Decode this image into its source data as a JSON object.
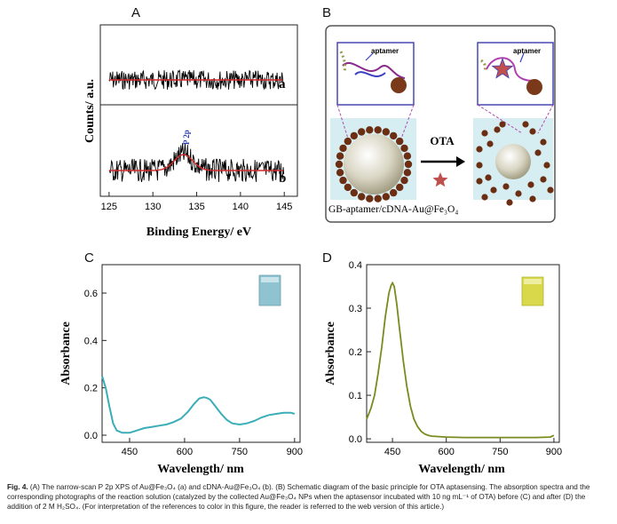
{
  "panels": {
    "A": {
      "letter": "A"
    },
    "B": {
      "letter": "B"
    },
    "C": {
      "letter": "C"
    },
    "D": {
      "letter": "D"
    }
  },
  "panelB": {
    "aptamer_label_left": "aptamer",
    "aptamer_label_right": "aptamer",
    "reagent_label": "OTA",
    "conjugate_label": "GB-aptamer/cDNA-Au@Fe₃O₄"
  },
  "chart_data": [
    {
      "panel": "A",
      "type": "line",
      "title": "",
      "xlabel": "Binding Energy/ eV",
      "ylabel": "Counts/ a.u.",
      "xlim": [
        124,
        146.5
      ],
      "xticks": [
        125,
        130,
        135,
        140,
        145
      ],
      "series": [
        {
          "name": "a",
          "description_label": "a",
          "x_range": [
            125,
            145
          ],
          "noise": "flat baseline with noise, red smoothed fit"
        },
        {
          "name": "b",
          "description_label": "b",
          "x_range": [
            125,
            145
          ],
          "peak_x": 133.5,
          "peak_label": "P 2p"
        }
      ],
      "grid": false
    },
    {
      "panel": "C",
      "type": "line",
      "xlabel": "Wavelength/ nm",
      "ylabel": "Absorbance",
      "xlim": [
        375,
        915
      ],
      "ylim": [
        -0.03,
        0.72
      ],
      "xticks": [
        450,
        600,
        750,
        900
      ],
      "yticks": [
        "0.0",
        "0.2",
        "0.4",
        "0.6"
      ],
      "series": [
        {
          "color": "#3aaeb8",
          "x": [
            375,
            385,
            395,
            405,
            415,
            430,
            450,
            470,
            490,
            510,
            530,
            550,
            570,
            590,
            610,
            625,
            640,
            652,
            660,
            670,
            685,
            700,
            715,
            730,
            750,
            770,
            790,
            810,
            830,
            850,
            870,
            890,
            900
          ],
          "y": [
            0.25,
            0.2,
            0.12,
            0.05,
            0.02,
            0.01,
            0.01,
            0.02,
            0.03,
            0.035,
            0.04,
            0.045,
            0.055,
            0.07,
            0.1,
            0.13,
            0.155,
            0.16,
            0.158,
            0.15,
            0.12,
            0.09,
            0.065,
            0.05,
            0.045,
            0.05,
            0.06,
            0.075,
            0.085,
            0.09,
            0.095,
            0.095,
            0.09
          ]
        }
      ],
      "inset_photo_color": "#8fc3cf",
      "grid": false
    },
    {
      "panel": "D",
      "type": "line",
      "xlabel": "Wavelength/ nm",
      "ylabel": "Absorbance",
      "xlim": [
        378,
        915
      ],
      "ylim": [
        -0.008,
        0.4
      ],
      "xticks": [
        450,
        600,
        750,
        900
      ],
      "yticks": [
        "0.0",
        "0.1",
        "0.2",
        "0.3",
        "0.4"
      ],
      "series": [
        {
          "color": "#7a8a1c",
          "x": [
            378,
            390,
            400,
            410,
            420,
            430,
            440,
            446,
            450,
            455,
            462,
            470,
            480,
            490,
            500,
            510,
            520,
            530,
            540,
            550,
            560,
            580,
            600,
            650,
            700,
            750,
            800,
            850,
            890,
            900
          ],
          "y": [
            0.045,
            0.07,
            0.1,
            0.15,
            0.21,
            0.28,
            0.335,
            0.352,
            0.358,
            0.35,
            0.31,
            0.25,
            0.18,
            0.12,
            0.075,
            0.045,
            0.028,
            0.017,
            0.011,
            0.008,
            0.006,
            0.005,
            0.004,
            0.003,
            0.003,
            0.003,
            0.003,
            0.003,
            0.004,
            0.008
          ]
        }
      ],
      "inset_photo_color": "#d8d84a",
      "grid": false
    }
  ],
  "caption": {
    "lead": "Fig. 4.",
    "text": " (A) The narrow-scan P 2p XPS of Au@Fe₃O₄ (a) and cDNA-Au@Fe₃O₄ (b). (B) Schematic diagram of the basic principle for OTA aptasensing. The absorption spectra and the corresponding photographs of the reaction solution (catalyzed by the collected Au@Fe₃O₄ NPs when the aptasensor incubated with 10 ng mL⁻¹ of OTA) before (C) and after (D) the addition of 2 M H₂SO₄. (For interpretation of the references to color in this figure, the reader is referred to the web version of this article.)"
  }
}
